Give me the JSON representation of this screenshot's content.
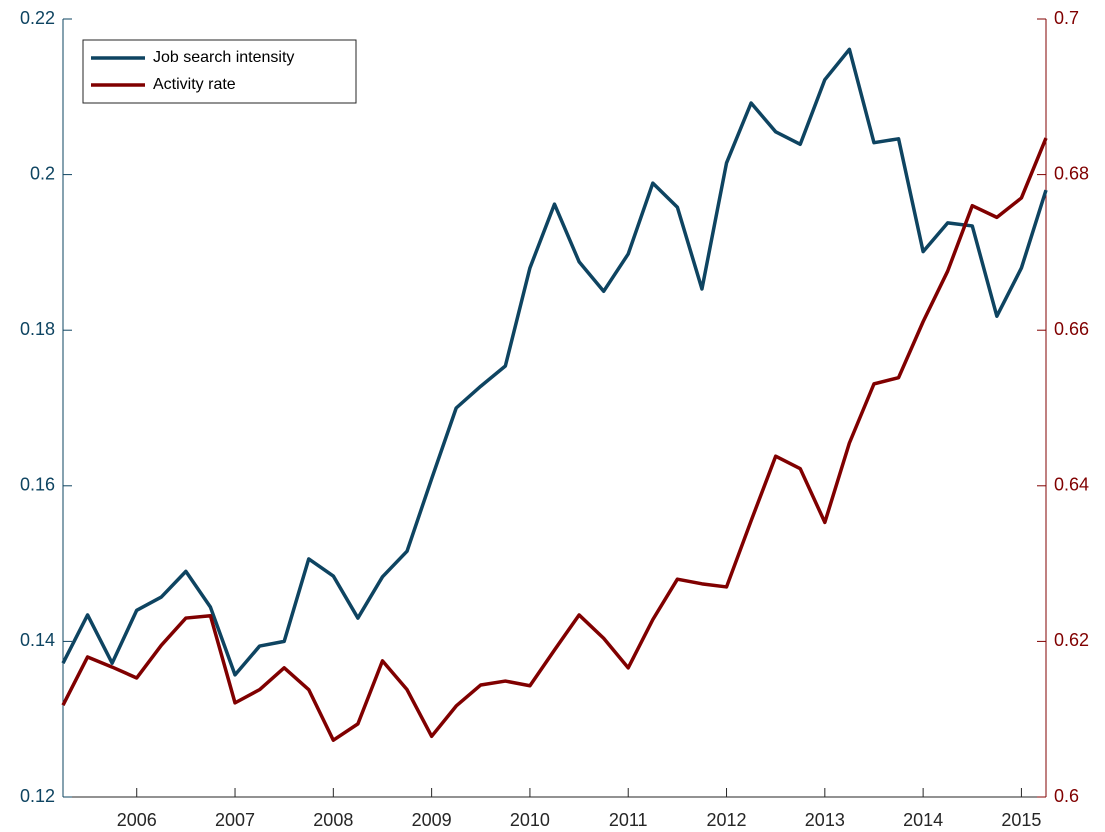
{
  "chart_data": {
    "type": "line",
    "x": [
      2005.25,
      2005.5,
      2005.75,
      2006,
      2006.25,
      2006.5,
      2006.75,
      2007,
      2007.25,
      2007.5,
      2007.75,
      2008,
      2008.25,
      2008.5,
      2008.75,
      2009,
      2009.25,
      2009.5,
      2009.75,
      2010,
      2010.25,
      2010.5,
      2010.75,
      2011,
      2011.25,
      2011.5,
      2011.75,
      2012,
      2012.25,
      2012.5,
      2012.75,
      2013,
      2013.25,
      2013.5,
      2013.75,
      2014,
      2014.25,
      2014.5,
      2014.75,
      2015,
      2015.25
    ],
    "xlim": [
      2005.25,
      2015.25
    ],
    "xticks": [
      2006,
      2007,
      2008,
      2009,
      2010,
      2011,
      2012,
      2013,
      2014,
      2015
    ],
    "ylim": [
      0.12,
      0.22
    ],
    "yticks": [
      0.12,
      0.14,
      0.16,
      0.18,
      0.2,
      0.22
    ],
    "y2lim": [
      0.6,
      0.7
    ],
    "y2ticks": [
      0.6,
      0.62,
      0.64,
      0.66,
      0.68,
      0.7
    ],
    "legend": "upper left",
    "series": [
      {
        "name": "Job search intensity",
        "color": "#0e4461",
        "values": [
          0.1372,
          0.1434,
          0.1372,
          0.144,
          0.1457,
          0.149,
          0.1444,
          0.1357,
          0.1394,
          0.14,
          0.1506,
          0.1484,
          0.143,
          0.1483,
          0.1516,
          0.1609,
          0.17,
          0.1728,
          0.1754,
          0.188,
          0.1962,
          0.1888,
          0.185,
          0.1898,
          0.1989,
          0.1958,
          0.1853,
          0.2015,
          0.2092,
          0.2055,
          0.2039,
          0.2122,
          0.2161,
          0.2041,
          0.2046,
          0.1901,
          0.1938,
          0.1934,
          0.1818,
          0.188,
          0.198
        ]
      },
      {
        "name": "Activity rate",
        "color": "#800000",
        "axis": "y2",
        "values": [
          0.6118,
          0.618,
          0.6167,
          0.6153,
          0.6195,
          0.623,
          0.6233,
          0.6121,
          0.6138,
          0.6166,
          0.6138,
          0.6073,
          0.6094,
          0.6175,
          0.6138,
          0.6078,
          0.6117,
          0.6144,
          0.6149,
          0.6143,
          0.6189,
          0.6234,
          0.6204,
          0.6166,
          0.6228,
          0.628,
          0.6274,
          0.627,
          0.6355,
          0.6438,
          0.6422,
          0.6353,
          0.6455,
          0.6531,
          0.6539,
          0.6611,
          0.6676,
          0.676,
          0.6745,
          0.677,
          0.6847
        ]
      }
    ]
  }
}
